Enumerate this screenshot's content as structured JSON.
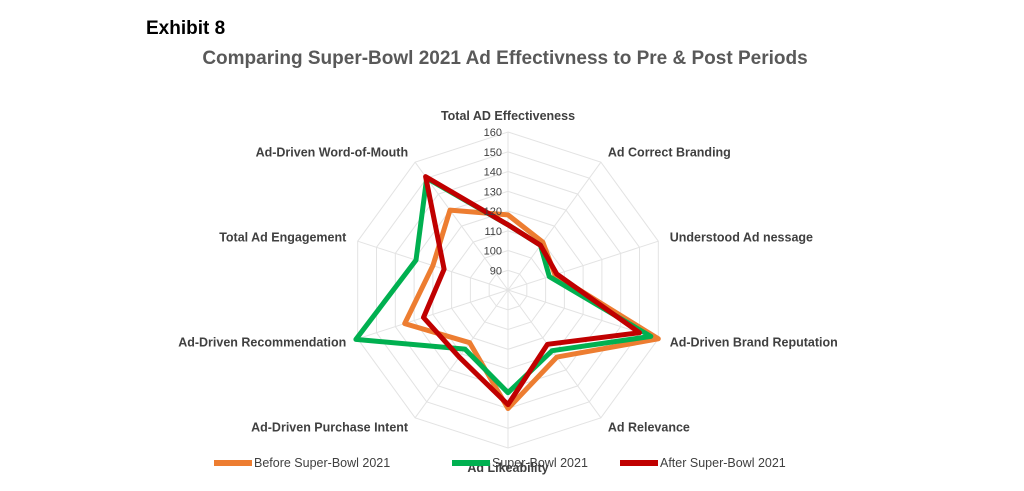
{
  "exhibit_label": "Exhibit 8",
  "chart_data": {
    "type": "radar",
    "title": "Comparing Super-Bowl 2021 Ad Effectivness to Pre & Post Periods",
    "categories": [
      "Total AD Effectiveness",
      "Ad Correct Branding",
      "Understood Ad nessage",
      "Ad-Driven Brand Reputation",
      "Ad Relevance",
      "Ad Likeability",
      "Ad-Driven Purchase Intent",
      "Ad-Driven Recommendation",
      "Total Ad Engagement",
      "Ad-Driven Word-of-Mouth"
    ],
    "r_ticks": [
      90,
      100,
      110,
      120,
      130,
      140,
      150,
      160
    ],
    "rlim": [
      80,
      160
    ],
    "series": [
      {
        "name": "Before Super-Bowl 2021",
        "color": "#ED7D31",
        "values": [
          118,
          110,
          105,
          160,
          122,
          140,
          113,
          135,
          120,
          130
        ]
      },
      {
        "name": "Super-Bowl 2021",
        "color": "#00B050",
        "values": [
          113,
          108,
          102,
          156,
          118,
          132,
          117,
          161,
          129,
          150
        ]
      },
      {
        "name": "After Super-Bowl 2021",
        "color": "#C00000",
        "values": [
          113,
          108,
          106,
          150,
          114,
          138,
          122,
          125,
          114,
          151
        ]
      }
    ],
    "legend_position": "bottom"
  }
}
